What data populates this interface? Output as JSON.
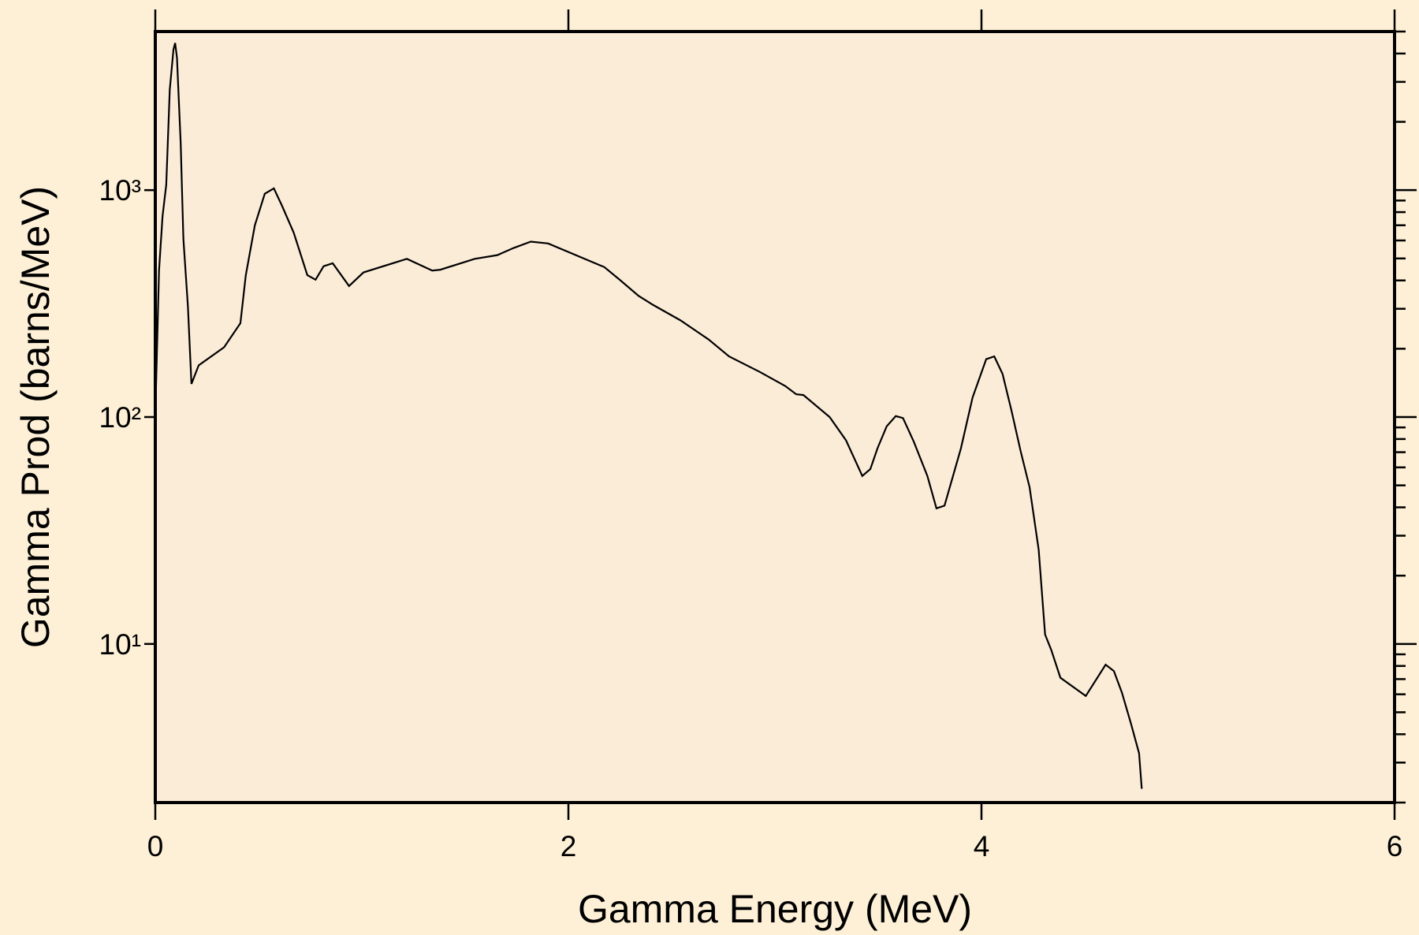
{
  "chart_data": {
    "type": "line",
    "xlabel": "Gamma Energy (MeV)",
    "ylabel": "Gamma Prod (barns/MeV)",
    "log_y": true,
    "grid": false,
    "xlim": [
      0,
      6
    ],
    "xticks": [
      0,
      2,
      4,
      6
    ],
    "ylim": [
      2,
      5000
    ],
    "yticks": [
      {
        "value": 10,
        "label": "10¹"
      },
      {
        "value": 100,
        "label": "10²"
      },
      {
        "value": 1000,
        "label": "10³"
      }
    ],
    "yticks_minor": [
      2,
      3,
      4,
      5,
      6,
      7,
      8,
      9,
      20,
      30,
      40,
      50,
      60,
      70,
      80,
      90,
      200,
      300,
      400,
      500,
      600,
      700,
      800,
      900,
      2000,
      3000,
      4000,
      5000
    ],
    "series": [
      {
        "color": "#000000",
        "x": [
          0.0,
          0.018,
          0.035,
          0.053,
          0.07,
          0.088,
          0.096,
          0.105,
          0.123,
          0.136,
          0.158,
          0.175,
          0.21,
          0.333,
          0.412,
          0.438,
          0.482,
          0.53,
          0.574,
          0.613,
          0.67,
          0.736,
          0.776,
          0.815,
          0.859,
          0.938,
          1.008,
          1.218,
          1.341,
          1.38,
          1.547,
          1.656,
          1.735,
          1.818,
          1.902,
          2.174,
          2.248,
          2.34,
          2.41,
          2.542,
          2.678,
          2.778,
          2.927,
          3.05,
          3.103,
          3.138,
          3.265,
          3.344,
          3.423,
          3.462,
          3.497,
          3.541,
          3.585,
          3.62,
          3.672,
          3.738,
          3.782,
          3.821,
          3.9,
          3.957,
          4.023,
          4.062,
          4.102,
          4.145,
          4.19,
          4.233,
          4.277,
          4.308,
          4.338,
          4.382,
          4.505,
          4.601,
          4.641,
          4.68,
          4.724,
          4.763,
          4.776
        ],
        "values": [
          102,
          442,
          766,
          1057,
          2770,
          4170,
          4450,
          3820,
          1600,
          610,
          306,
          140,
          169,
          203,
          259,
          421,
          700,
          964,
          1018,
          855,
          650,
          422,
          403,
          462,
          476,
          378,
          434,
          498,
          442,
          446,
          498,
          517,
          556,
          593,
          582,
          458,
          403,
          342,
          312,
          267,
          220,
          185,
          158,
          137,
          126,
          125,
          100,
          79,
          55,
          59,
          73,
          91,
          101,
          99,
          78,
          55,
          39.6,
          40.7,
          72.5,
          122,
          180,
          185,
          155,
          107,
          70.5,
          49,
          26,
          11,
          9.4,
          7.1,
          5.9,
          8.1,
          7.6,
          6.1,
          4.45,
          3.3,
          2.3
        ]
      }
    ]
  }
}
